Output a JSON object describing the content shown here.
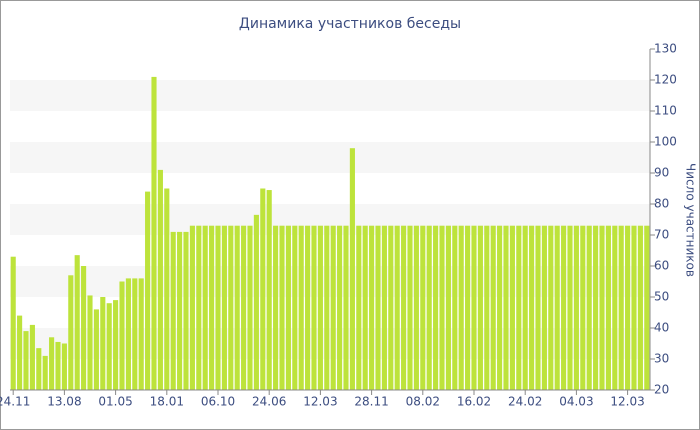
{
  "chart_data": {
    "type": "bar",
    "title": "Динамика участников беседы",
    "y_axis_label": "Число участников",
    "categories": [
      "24.11",
      null,
      null,
      null,
      null,
      null,
      null,
      null,
      "13.08",
      null,
      null,
      null,
      null,
      null,
      null,
      null,
      "01.05",
      null,
      null,
      null,
      null,
      null,
      null,
      null,
      "18.01",
      null,
      null,
      null,
      null,
      null,
      null,
      null,
      "06.10",
      null,
      null,
      null,
      null,
      null,
      null,
      null,
      "24.06",
      null,
      null,
      null,
      null,
      null,
      null,
      null,
      "12.03",
      null,
      null,
      null,
      null,
      null,
      null,
      null,
      "28.11",
      null,
      null,
      null,
      null,
      null,
      null,
      null,
      "08.02",
      null,
      null,
      null,
      null,
      null,
      null,
      null,
      "16.02",
      null,
      null,
      null,
      null,
      null,
      null,
      null,
      "24.02",
      null,
      null,
      null,
      null,
      null,
      null,
      null,
      "04.03",
      null,
      null,
      null,
      null,
      null,
      null,
      null,
      "12.03",
      null,
      null,
      null
    ],
    "values": [
      63,
      44,
      39,
      41,
      33.5,
      31,
      37,
      35.5,
      35,
      57,
      63.5,
      60,
      50.5,
      46,
      50,
      48,
      49,
      55,
      56,
      56,
      56,
      84,
      121,
      91,
      85,
      71,
      71,
      71,
      73,
      73,
      73,
      73,
      73,
      73,
      73,
      73,
      73,
      73,
      76.5,
      85,
      84.5,
      73,
      73,
      73,
      73,
      73,
      73,
      73,
      73,
      73,
      73,
      73,
      73,
      98,
      73,
      73,
      73,
      73,
      73,
      73,
      73,
      73,
      73,
      73,
      73,
      73,
      73,
      73,
      73,
      73,
      73,
      73,
      73,
      73,
      73,
      73,
      73,
      73,
      73,
      73,
      73,
      73,
      73,
      73,
      73,
      73,
      73,
      73,
      73,
      73,
      73,
      73,
      73,
      73,
      73,
      73,
      73,
      73,
      73,
      73
    ],
    "color": "#bde33b",
    "ylim": [
      20,
      130
    ],
    "yticks": [
      20,
      30,
      40,
      50,
      60,
      70,
      80,
      90,
      100,
      110,
      120,
      130
    ],
    "grid": true
  }
}
